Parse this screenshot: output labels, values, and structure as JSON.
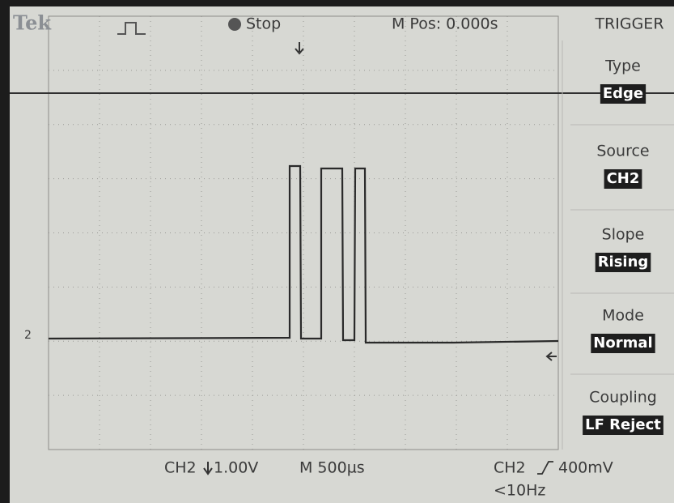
{
  "header": {
    "brand": "Tek",
    "status": "Stop",
    "position": "M Pos: 0.000s"
  },
  "menu": {
    "title": "TRIGGER",
    "items": [
      {
        "label": "Type",
        "value": "Edge"
      },
      {
        "label": "Source",
        "value": "CH2"
      },
      {
        "label": "Slope",
        "value": "Rising"
      },
      {
        "label": "Mode",
        "value": "Normal"
      },
      {
        "label": "Coupling",
        "value": "LF Reject"
      }
    ]
  },
  "channel_marker": "2",
  "footer": {
    "channel": "CH2",
    "scale": "1.00V",
    "timebase": "M 500µs",
    "trigger_source": "CH2",
    "trigger_level": "400mV",
    "frequency": "<10Hz"
  }
}
